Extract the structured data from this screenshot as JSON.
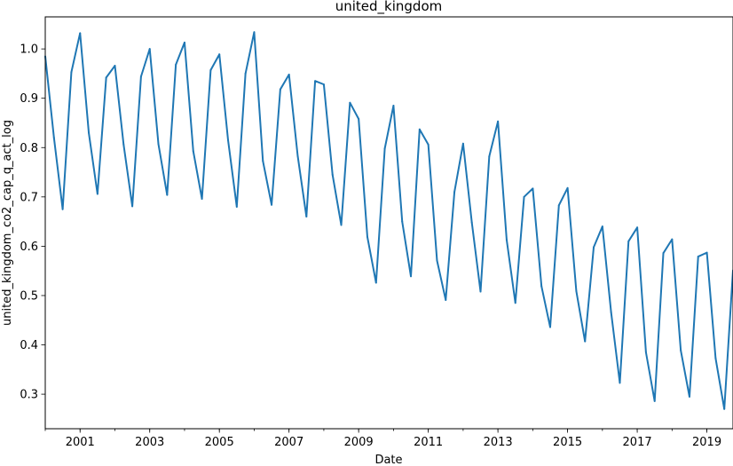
{
  "chart_data": {
    "type": "line",
    "title": "united_kingdom",
    "xlabel": "Date",
    "ylabel": "united_kingdom_co2_cap_q_act_log",
    "xlim": [
      "2000-01",
      "2019-10"
    ],
    "ylim": [
      0.23,
      1.065
    ],
    "x_ticks": [
      "2001",
      "2003",
      "2005",
      "2007",
      "2009",
      "2011",
      "2013",
      "2015",
      "2017",
      "2019"
    ],
    "y_ticks": [
      "0.3",
      "0.4",
      "0.5",
      "0.6",
      "0.7",
      "0.8",
      "0.9",
      "1.0"
    ],
    "grid": false,
    "color": "#1f77b4",
    "series": [
      {
        "x": [
          "2000-01",
          "2000-04",
          "2000-07",
          "2000-10",
          "2001-01",
          "2001-04",
          "2001-07",
          "2001-10",
          "2002-01",
          "2002-04",
          "2002-07",
          "2002-10",
          "2003-01",
          "2003-04",
          "2003-07",
          "2003-10",
          "2004-01",
          "2004-04",
          "2004-07",
          "2004-10",
          "2005-01",
          "2005-04",
          "2005-07",
          "2005-10",
          "2006-01",
          "2006-04",
          "2006-07",
          "2006-10",
          "2007-01",
          "2007-04",
          "2007-07",
          "2007-10",
          "2008-01",
          "2008-04",
          "2008-07",
          "2008-10",
          "2009-01",
          "2009-04",
          "2009-07",
          "2009-10",
          "2010-01",
          "2010-04",
          "2010-07",
          "2010-10",
          "2011-01",
          "2011-04",
          "2011-07",
          "2011-10",
          "2012-01",
          "2012-04",
          "2012-07",
          "2012-10",
          "2013-01",
          "2013-04",
          "2013-07",
          "2013-10",
          "2014-01",
          "2014-04",
          "2014-07",
          "2014-10",
          "2015-01",
          "2015-04",
          "2015-07",
          "2015-10",
          "2016-01",
          "2016-04",
          "2016-07",
          "2016-10",
          "2017-01",
          "2017-04",
          "2017-07",
          "2017-10",
          "2018-01",
          "2018-04",
          "2018-07",
          "2018-10",
          "2019-01",
          "2019-04",
          "2019-07",
          "2019-10"
        ],
        "values": [
          0.985,
          0.82,
          0.675,
          0.953,
          1.032,
          0.83,
          0.706,
          0.942,
          0.966,
          0.806,
          0.681,
          0.944,
          1.0,
          0.807,
          0.704,
          0.968,
          1.013,
          0.793,
          0.696,
          0.957,
          0.989,
          0.815,
          0.68,
          0.95,
          1.034,
          0.773,
          0.684,
          0.918,
          0.948,
          0.783,
          0.66,
          0.935,
          0.928,
          0.745,
          0.643,
          0.891,
          0.858,
          0.619,
          0.526,
          0.798,
          0.885,
          0.65,
          0.539,
          0.837,
          0.806,
          0.571,
          0.491,
          0.71,
          0.808,
          0.648,
          0.508,
          0.782,
          0.853,
          0.613,
          0.485,
          0.7,
          0.717,
          0.519,
          0.436,
          0.683,
          0.718,
          0.509,
          0.407,
          0.598,
          0.64,
          0.466,
          0.323,
          0.61,
          0.638,
          0.385,
          0.286,
          0.586,
          0.614,
          0.389,
          0.295,
          0.579,
          0.587,
          0.373,
          0.27,
          0.551
        ]
      }
    ]
  }
}
